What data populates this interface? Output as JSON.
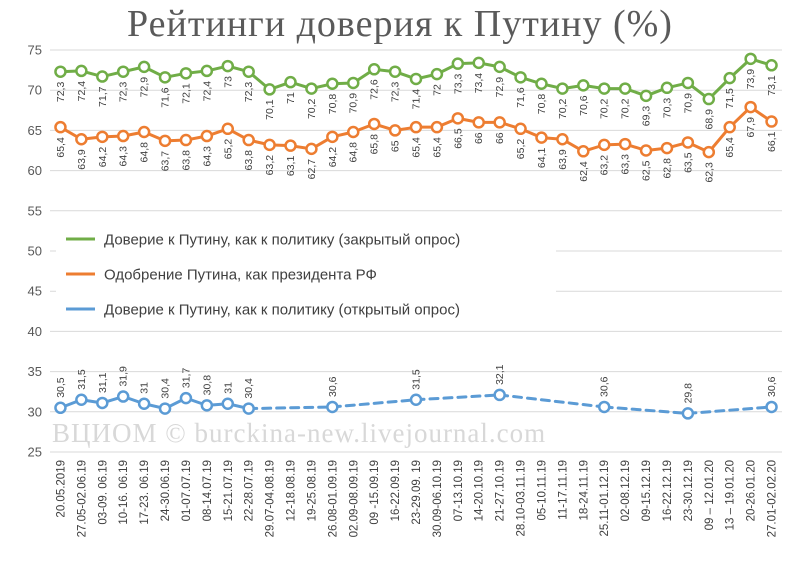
{
  "chart_data": {
    "type": "line",
    "title": "Рейтинги доверия к Путину (%)",
    "watermark": "ВЦИОМ © burckina-new.livejournal.com",
    "ylim": [
      25,
      75
    ],
    "yticks": [
      25,
      30,
      35,
      40,
      45,
      50,
      55,
      60,
      65,
      70,
      75
    ],
    "grid": true,
    "legend_position": "middle-left",
    "categories": [
      "20.05.2019",
      "27.05-02.06.19",
      "03-09. 06.19",
      "10-16. 06.19",
      "17-23. 06.19",
      "24-30.06.19",
      "01-07.07.19",
      "08-14.07.19",
      "15-21.07.19",
      "22-28.07.19",
      "29.07-04.08.19",
      "12-18.08.19",
      "19-25.08.19",
      "26.08-01.09.19",
      "02.09-08.09.19",
      "09 -15.09.19",
      "16-22.09.19",
      "23-29.09. 19",
      "30.09-06.10.19",
      "07-13.10.19",
      "14-20.10.19",
      "21-27.10.19",
      "28.10-03.11.19",
      "05-10.11.19",
      "11-17.11.19",
      "18-24.11.19",
      "25.11-01.12.19",
      "02-08.12.19",
      "09-15.12.19",
      "16-22.12.19",
      "23-30.12.19",
      "09 – 12.01.20",
      "13 – 19.01.20",
      "20-26.01.20",
      "27.01-02.02.20"
    ],
    "series": [
      {
        "name": "Доверие к Путину, как к политику (закрытый опрос)",
        "color": "#70ad47",
        "labels_position": "below",
        "values": [
          72.3,
          72.4,
          71.7,
          72.3,
          72.9,
          71.6,
          72.1,
          72.4,
          73,
          72.3,
          70.1,
          71,
          70.2,
          70.8,
          70.9,
          72.6,
          72.3,
          71.4,
          72,
          73.3,
          73.4,
          72.9,
          71.6,
          70.8,
          70.2,
          70.6,
          70.2,
          70.2,
          69.3,
          70.3,
          70.9,
          68.9,
          71.5,
          73.9,
          73.1
        ],
        "labels": [
          "72,3",
          "72,4",
          "71,7",
          "72,3",
          "72,9",
          "71,6",
          "72,1",
          "72,4",
          "73",
          "72,3",
          "70,1",
          "71",
          "70,2",
          "70,8",
          "70,9",
          "72,6",
          "72,3",
          "71,4",
          "72",
          "73,3",
          "73,4",
          "72,9",
          "71,6",
          "70,8",
          "70,2",
          "70,6",
          "70,2",
          "70,2",
          "69,3",
          "70,3",
          "70,9",
          "68,9",
          "71,5",
          "73,9",
          "73,1"
        ]
      },
      {
        "name": "Одобрение Путина, как президента РФ",
        "color": "#ed7d31",
        "labels_position": "below",
        "values": [
          65.4,
          63.9,
          64.2,
          64.3,
          64.8,
          63.7,
          63.8,
          64.3,
          65.2,
          63.8,
          63.2,
          63.1,
          62.7,
          64.2,
          64.8,
          65.8,
          65,
          65.4,
          65.4,
          66.5,
          66,
          66,
          65.2,
          64.1,
          63.9,
          62.4,
          63.2,
          63.3,
          62.5,
          62.8,
          63.5,
          62.3,
          65.4,
          67.9,
          66.1
        ],
        "labels": [
          "65,4",
          "63,9",
          "64,2",
          "64,3",
          "64,8",
          "63,7",
          "63,8",
          "64,3",
          "65,2",
          "63,8",
          "63,2",
          "63,1",
          "62,7",
          "64,2",
          "64,8",
          "65,8",
          "65",
          "65,4",
          "65,4",
          "66,5",
          "66",
          "66",
          "65,2",
          "64,1",
          "63,9",
          "62,4",
          "63,2",
          "63,3",
          "62,5",
          "62,8",
          "63,5",
          "62,3",
          "65,4",
          "67,9",
          "66,1"
        ]
      },
      {
        "name": "Доверие к Путину, как к политику (открытый опрос)",
        "color": "#5b9bd5",
        "labels_position": "above",
        "solid_until_index": 9,
        "values": [
          30.5,
          31.5,
          31.1,
          31.9,
          31,
          30.4,
          31.7,
          30.8,
          31,
          30.4,
          null,
          null,
          null,
          30.6,
          null,
          null,
          null,
          31.5,
          null,
          null,
          null,
          32.1,
          null,
          null,
          null,
          null,
          30.6,
          null,
          null,
          null,
          29.8,
          null,
          null,
          null,
          30.6
        ],
        "labels": [
          "30,5",
          "31,5",
          "31,1",
          "31,9",
          "31",
          "30,4",
          "31,7",
          "30,8",
          "31",
          "30,4",
          null,
          null,
          null,
          "30,6",
          null,
          null,
          null,
          "31,5",
          null,
          null,
          null,
          "32,1",
          null,
          null,
          null,
          null,
          "30,6",
          null,
          null,
          null,
          "29,8",
          null,
          null,
          null,
          "30,6"
        ]
      }
    ]
  }
}
